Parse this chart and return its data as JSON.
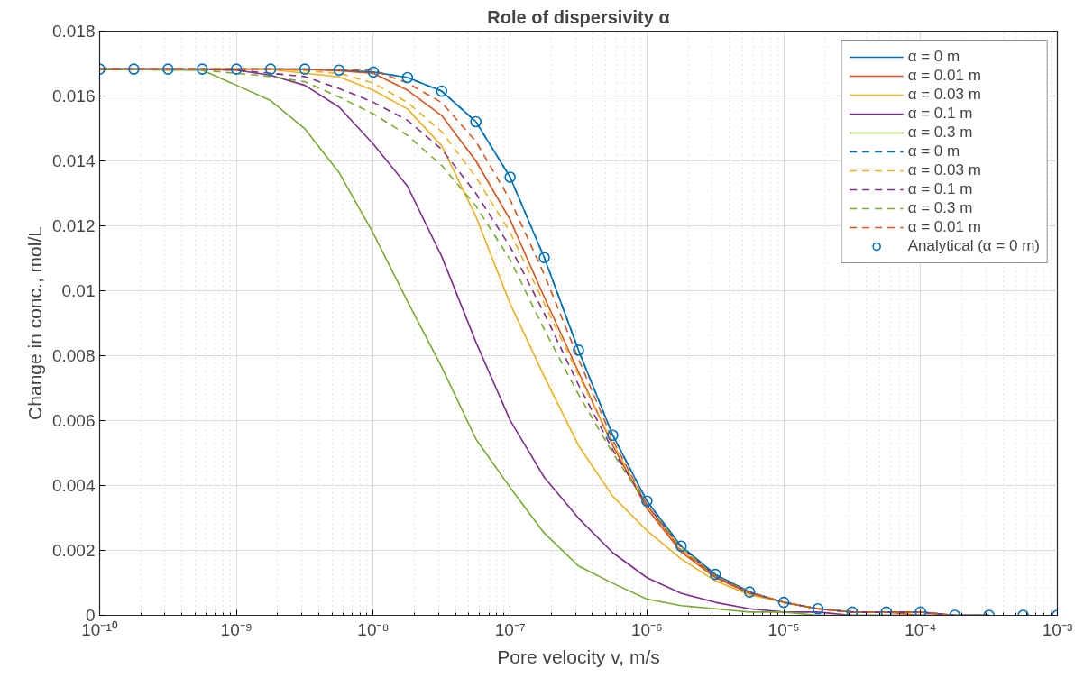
{
  "chart_data": {
    "type": "line",
    "title": "Role of dispersivity α",
    "xlabel": "Pore velocity v, m/s",
    "ylabel": "Change in conc., mol/L",
    "log": "x",
    "grid": true,
    "legend": "top right",
    "xlim": [
      1e-10,
      0.001
    ],
    "xticks": [
      {
        "value": 1e-10,
        "label": "10⁻¹⁰"
      },
      {
        "value": 1e-09,
        "label": "10⁻⁹"
      },
      {
        "value": 1e-08,
        "label": "10⁻⁸"
      },
      {
        "value": 1e-07,
        "label": "10⁻⁷"
      },
      {
        "value": 1e-06,
        "label": "10⁻⁶"
      },
      {
        "value": 1e-05,
        "label": "10⁻⁵"
      },
      {
        "value": 0.0001,
        "label": "10⁻⁴"
      },
      {
        "value": 0.001,
        "label": "10⁻³"
      }
    ],
    "ylim": [
      0,
      0.018
    ],
    "yticks": [
      0,
      0.002,
      0.004,
      0.006,
      0.008,
      0.01,
      0.012,
      0.014,
      0.016,
      0.018
    ],
    "x": [
      1e-10,
      1.778e-10,
      3.162e-10,
      5.623e-10,
      1e-09,
      1.778e-09,
      3.162e-09,
      5.623e-09,
      1e-08,
      1.778e-08,
      3.162e-08,
      5.623e-08,
      1e-07,
      1.778e-07,
      3.162e-07,
      5.623e-07,
      1e-06,
      1.778e-06,
      3.162e-06,
      5.623e-06,
      1e-05,
      1.778e-05,
      3.162e-05,
      5.623e-05,
      0.0001,
      0.0001778,
      0.0003162,
      0.0005623,
      0.001
    ],
    "series": [
      {
        "name": "α = 0 m",
        "color": "#0072bd",
        "line_style": "solid",
        "marker": "none",
        "values": [
          0.01683,
          0.01683,
          0.01683,
          0.01683,
          0.01683,
          0.01683,
          0.01683,
          0.0168,
          0.01674,
          0.01657,
          0.01615,
          0.01521,
          0.0135,
          0.01102,
          0.00817,
          0.00555,
          0.00352,
          0.00213,
          0.00126,
          0.00072,
          0.0004,
          0.0002,
          0.0001,
          0.0001,
          0.0001,
          0.0,
          0.0,
          null,
          null
        ]
      },
      {
        "name": "α = 0.01 m",
        "color": "#d95319",
        "line_style": "solid",
        "marker": "none",
        "values": [
          0.01683,
          0.01683,
          0.01683,
          0.01683,
          0.01683,
          0.01683,
          0.01682,
          0.01678,
          0.0167,
          0.01618,
          0.0154,
          0.014,
          0.01219,
          0.0098,
          0.0075,
          0.00523,
          0.00329,
          0.00195,
          0.00116,
          0.00067,
          0.0004,
          0.0002,
          0.0001,
          0.0001,
          0.0,
          0.0,
          0.0,
          null,
          null
        ]
      },
      {
        "name": "α = 0.03 m",
        "color": "#edb120",
        "line_style": "solid",
        "marker": "none",
        "values": [
          null,
          null,
          null,
          0.01683,
          0.01683,
          0.01682,
          0.0167,
          0.01659,
          0.01618,
          0.0156,
          0.01447,
          0.01229,
          0.0096,
          0.00736,
          0.00523,
          0.00367,
          0.00261,
          0.00174,
          0.00106,
          0.00063,
          0.0004,
          0.0002,
          0.0001,
          null,
          null,
          null,
          null,
          null,
          null
        ]
      },
      {
        "name": "α = 0.1 m",
        "color": "#7e2f8e",
        "line_style": "solid",
        "marker": "none",
        "values": [
          0.01683,
          0.01683,
          0.01683,
          0.01682,
          0.0168,
          0.01664,
          0.01633,
          0.01566,
          0.01452,
          0.01322,
          0.01106,
          0.00842,
          0.00601,
          0.00425,
          0.00299,
          0.00193,
          0.00116,
          0.00068,
          0.0004,
          0.0002,
          0.0001,
          0.0001,
          0.0,
          0.0,
          0.0,
          0.0,
          0.0,
          null,
          null
        ]
      },
      {
        "name": "α = 0.3 m",
        "color": "#77ac30",
        "line_style": "solid",
        "marker": "none",
        "values": [
          0.01683,
          0.01682,
          0.0168,
          0.0168,
          0.01633,
          0.01586,
          0.01499,
          0.01364,
          0.01177,
          0.00968,
          0.00765,
          0.00543,
          0.00394,
          0.00253,
          0.00152,
          0.00099,
          0.0005,
          0.0003,
          0.0002,
          0.0001,
          0.0001,
          0.0,
          0.0,
          0.0,
          0.0,
          0.0,
          0.0,
          null,
          null
        ]
      },
      {
        "name": "α = 0 m",
        "color": "#0072bd",
        "line_style": "dashed",
        "marker": "none",
        "values": [
          0.01683,
          0.01683,
          0.01683,
          0.01683,
          0.01683,
          0.01683,
          0.01683,
          0.0168,
          0.01674,
          0.01657,
          0.01615,
          0.01521,
          0.0135,
          0.01102,
          0.00817,
          0.00555,
          0.00352,
          0.00213,
          0.00126,
          0.00072,
          0.0004,
          0.0002,
          0.0001,
          0.0001,
          0.0001,
          0.0,
          0.0,
          null,
          null
        ]
      },
      {
        "name": "α = 0.03 m",
        "color": "#edb120",
        "line_style": "dashed",
        "marker": "none",
        "values": [
          null,
          null,
          null,
          0.01683,
          0.01683,
          0.01682,
          0.01678,
          0.0167,
          0.0164,
          0.0158,
          0.0149,
          0.0135,
          0.0118,
          0.0096,
          0.0074,
          0.0053,
          0.0034,
          0.002,
          0.0012,
          0.0007,
          0.0004,
          0.0002,
          0.0001,
          null,
          null,
          null,
          null,
          null,
          null
        ]
      },
      {
        "name": "α = 0.1 m",
        "color": "#7e2f8e",
        "line_style": "dashed",
        "marker": "none",
        "values": [
          0.01683,
          0.01683,
          0.01683,
          0.01683,
          0.0168,
          0.0167,
          0.0166,
          0.01623,
          0.01581,
          0.01525,
          0.01436,
          0.013,
          0.01136,
          0.0093,
          0.0071,
          0.0051,
          0.0034,
          0.0021,
          0.0012,
          0.0007,
          0.0004,
          0.0002,
          0.0001,
          0.0001,
          0.0001,
          0.0,
          0.0,
          null,
          null
        ]
      },
      {
        "name": "α = 0.3 m",
        "color": "#77ac30",
        "line_style": "dashed",
        "marker": "none",
        "values": [
          0.01683,
          0.01683,
          0.01682,
          0.0168,
          0.0167,
          0.0166,
          0.01644,
          0.01597,
          0.01545,
          0.01479,
          0.01386,
          0.01261,
          0.01096,
          0.0088,
          0.0068,
          0.005,
          0.0034,
          0.0021,
          0.0012,
          0.0007,
          0.0004,
          0.0002,
          0.0001,
          0.0001,
          0.0001,
          0.0,
          0.0,
          null,
          null
        ]
      },
      {
        "name": "α = 0.01 m",
        "color": "#d95319",
        "line_style": "dashed",
        "marker": "none",
        "values": [
          0.01683,
          0.01683,
          0.01683,
          0.01683,
          0.01683,
          0.01683,
          0.01682,
          0.0168,
          0.0168,
          0.0164,
          0.0158,
          0.0146,
          0.0128,
          0.0105,
          0.0079,
          0.0054,
          0.0034,
          0.002,
          0.0012,
          0.0007,
          0.0004,
          0.0002,
          0.0001,
          0.0001,
          0.0001,
          0.0,
          0.0,
          null,
          null
        ]
      },
      {
        "name": "Analytical (α = 0 m)",
        "type": "scatter",
        "color": "#0072bd",
        "marker": "circle",
        "values": [
          0.01683,
          0.01683,
          0.01683,
          0.01683,
          0.01683,
          0.01683,
          0.01683,
          0.0168,
          0.01674,
          0.01657,
          0.01615,
          0.01521,
          0.0135,
          0.01102,
          0.00817,
          0.00555,
          0.00352,
          0.00213,
          0.00126,
          0.00072,
          0.0004,
          0.0002,
          0.0001,
          0.0001,
          0.0001,
          0.0,
          0.0,
          0.0,
          0.0
        ]
      }
    ]
  }
}
